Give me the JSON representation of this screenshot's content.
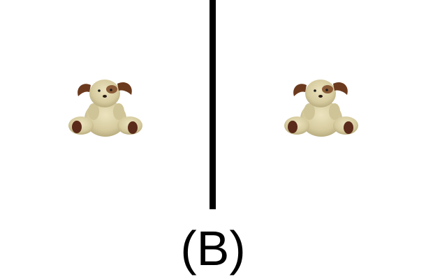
{
  "caption": "(B)",
  "panels": [
    {
      "subject": "plush-dog-toy"
    },
    {
      "subject": "plush-dog-toy"
    }
  ],
  "colors": {
    "background": "#ffffff",
    "divider": "#000000",
    "plush_fur": "#d9cfa4",
    "plush_ears": "#6b3a1e",
    "plush_paws": "#5a2a1a"
  }
}
